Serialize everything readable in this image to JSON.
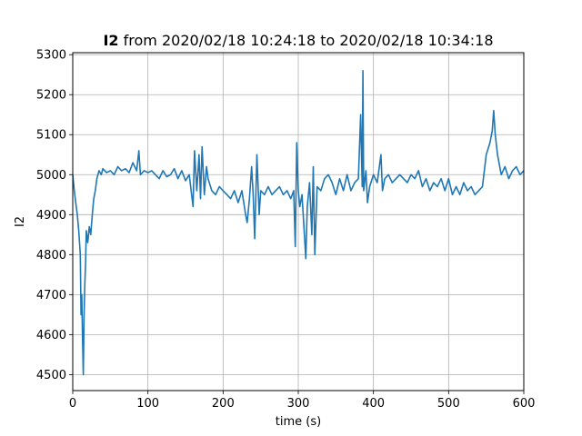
{
  "chart_data": {
    "type": "line",
    "title": {
      "series_bold": "I2",
      "rest": " from 2020/02/18 10:24:18 to 2020/02/18 10:34:18"
    },
    "xlabel": "time (s)",
    "ylabel": "I2",
    "xlim": [
      0,
      600
    ],
    "ylim": [
      4460,
      5305
    ],
    "xticks": [
      0,
      100,
      200,
      300,
      400,
      500,
      600
    ],
    "yticks": [
      4500,
      4600,
      4700,
      4800,
      4900,
      5000,
      5100,
      5200,
      5300
    ],
    "grid": true,
    "line_color": "#1f77b4",
    "series": [
      {
        "x": [
          0,
          2,
          4,
          6,
          8,
          10,
          11,
          12,
          13,
          14,
          15,
          16,
          17,
          18,
          20,
          22,
          24,
          26,
          28,
          30,
          32,
          35,
          38,
          40,
          45,
          50,
          55,
          60,
          65,
          70,
          75,
          80,
          85,
          88,
          90,
          95,
          100,
          105,
          110,
          115,
          120,
          125,
          130,
          135,
          140,
          145,
          150,
          155,
          160,
          162,
          165,
          168,
          170,
          172,
          175,
          178,
          180,
          185,
          190,
          195,
          200,
          205,
          210,
          215,
          220,
          225,
          230,
          232,
          235,
          238,
          240,
          242,
          245,
          248,
          250,
          255,
          260,
          265,
          270,
          275,
          280,
          285,
          290,
          294,
          296,
          298,
          300,
          302,
          305,
          310,
          312,
          315,
          318,
          320,
          322,
          325,
          330,
          335,
          340,
          345,
          350,
          355,
          360,
          365,
          370,
          375,
          380,
          383,
          385,
          386,
          387,
          390,
          392,
          395,
          400,
          405,
          410,
          412,
          415,
          420,
          425,
          430,
          435,
          440,
          445,
          450,
          455,
          460,
          465,
          470,
          475,
          480,
          485,
          490,
          495,
          500,
          505,
          510,
          515,
          520,
          525,
          530,
          535,
          540,
          545,
          550,
          555,
          558,
          560,
          562,
          565,
          570,
          575,
          580,
          585,
          590,
          595,
          600
        ],
        "values": [
          5000,
          4960,
          4930,
          4900,
          4860,
          4800,
          4650,
          4700,
          4600,
          4500,
          4640,
          4720,
          4780,
          4860,
          4830,
          4870,
          4850,
          4900,
          4940,
          4960,
          4990,
          5010,
          5000,
          5015,
          5005,
          5010,
          5000,
          5020,
          5010,
          5015,
          5005,
          5030,
          5010,
          5060,
          5000,
          5010,
          5005,
          5010,
          5000,
          4990,
          5010,
          4995,
          5000,
          5015,
          4990,
          5010,
          4985,
          5000,
          4920,
          5060,
          4960,
          5050,
          4940,
          5070,
          4950,
          5020,
          4990,
          4960,
          4950,
          4970,
          4960,
          4950,
          4940,
          4960,
          4930,
          4960,
          4900,
          4880,
          4940,
          5020,
          4950,
          4840,
          5050,
          4900,
          4960,
          4950,
          4970,
          4950,
          4960,
          4970,
          4950,
          4960,
          4940,
          4960,
          4820,
          5080,
          4960,
          4920,
          4950,
          4790,
          4920,
          4980,
          4850,
          5020,
          4800,
          4970,
          4960,
          4990,
          5000,
          4980,
          4950,
          4990,
          4960,
          5000,
          4960,
          4980,
          4990,
          5150,
          4970,
          5260,
          4960,
          5010,
          4930,
          4970,
          5000,
          4980,
          5050,
          4960,
          4990,
          5000,
          4980,
          4990,
          5000,
          4990,
          4980,
          5000,
          4990,
          5010,
          4970,
          4990,
          4960,
          4980,
          4970,
          4990,
          4960,
          4990,
          4950,
          4970,
          4950,
          4980,
          4960,
          4970,
          4950,
          4960,
          4970,
          5050,
          5080,
          5110,
          5160,
          5100,
          5050,
          5000,
          5020,
          4990,
          5010,
          5020,
          5000,
          5010
        ]
      }
    ]
  }
}
